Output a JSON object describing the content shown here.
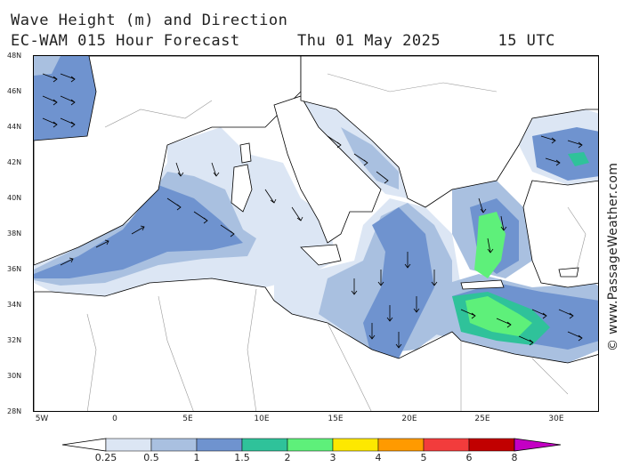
{
  "header": {
    "title_line1": "Wave Height (m) and Direction",
    "title_line2": "EC-WAM 015 Hour Forecast      Thu 01 May 2025      15 UTC"
  },
  "map": {
    "region": "Mediterranean Sea",
    "lat_labels": [
      "48N",
      "46N",
      "44N",
      "42N",
      "40N",
      "38N",
      "36N",
      "34N",
      "32N",
      "30N",
      "28N"
    ],
    "lon_labels": [
      "5W",
      "0",
      "5E",
      "10E",
      "15E",
      "20E",
      "25E",
      "30E"
    ],
    "wave_direction": "predominantly south-east, arrows across the sea",
    "colors": {
      "land_border": "#999999",
      "coastline": "#000000",
      "sea_background": "#ffffff"
    }
  },
  "legend": {
    "labels": [
      "0.25",
      "0.5",
      "1",
      "1.5",
      "2",
      "3",
      "4",
      "5",
      "6",
      "8"
    ],
    "colors": [
      "#ffffff",
      "#dce6f4",
      "#a9c0e0",
      "#6f93cf",
      "#2fc29a",
      "#5ef07a",
      "#fde800",
      "#ff9a00",
      "#f23c3c",
      "#c10000",
      "#c400c4"
    ]
  },
  "credit": "© www.PassageWeather.com"
}
